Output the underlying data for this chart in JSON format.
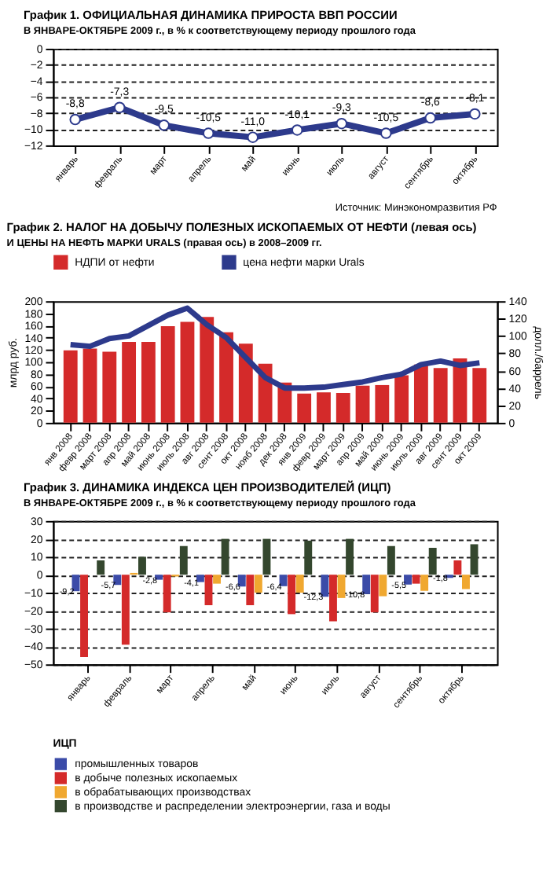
{
  "chart_data": [
    {
      "type": "line",
      "title": "График 1. ОФИЦИАЛЬНАЯ ДИНАМИКА ПРИРОСТА ВВП РОССИИ",
      "subtitle": "В ЯНВАРЕ-ОКТЯБРЕ 2009 г., в % к соответствующему периоду прошлого года",
      "categories": [
        "январь",
        "февраль",
        "март",
        "апрель",
        "май",
        "июнь",
        "июль",
        "август",
        "сентябрь",
        "октябрь"
      ],
      "series": [
        {
          "color": "#2d3a8c",
          "values": [
            -8.8,
            -7.3,
            -9.5,
            -10.5,
            -11.0,
            -10.1,
            -9.3,
            -10.5,
            -8.6,
            -8.1
          ],
          "value_labels": [
            "-8,8",
            "-7,3",
            "-9,5",
            "-10,5",
            "-11,0",
            "-10,1",
            "-9,3",
            "-10,5",
            "-8,6",
            "-8,1"
          ]
        }
      ],
      "ylim": [
        -12,
        0
      ],
      "yticks": [
        0,
        -2,
        -4,
        -6,
        -8,
        -10,
        -12
      ],
      "grid": "y",
      "marker": "circle",
      "legend": false,
      "annotations": [
        "Источник: Минэкономразвития РФ"
      ]
    },
    {
      "type": "bar",
      "title": "График 2. НАЛОГ НА ДОБЫЧУ ПОЛЕЗНЫХ ИСКОПАЕМЫХ ОТ НЕФТИ (левая ось)",
      "subtitle": "И ЦЕНЫ НА НЕФТЬ МАРКИ URALS (правая ось) в 2008–2009 гг.",
      "categories": [
        "янв 2008",
        "февр 2008",
        "март 2008",
        "апр 2008",
        "май 2008",
        "июнь 2008",
        "июль 2008",
        "авг 2008",
        "сент 2008",
        "окт 2008",
        "нояб 2008",
        "дек 2008",
        "янв 2009",
        "февр 2009",
        "март 2009",
        "апр 2009",
        "май 2009",
        "июнь 2009",
        "июль 2009",
        "авг 2009",
        "сент 2009",
        "окт 2009"
      ],
      "series": [
        {
          "name": "НДПИ от нефти",
          "type": "bar",
          "color": "#d42a2a",
          "values": [
            119,
            122,
            117,
            133,
            133,
            159,
            166,
            174,
            149,
            130,
            97,
            66,
            48,
            50,
            49,
            61,
            62,
            78,
            96,
            90,
            106,
            90
          ]
        },
        {
          "name": "цена нефти марки Urals",
          "type": "line",
          "axis": "y2",
          "color": "#2d3a8c",
          "values": [
            90,
            88,
            97,
            100,
            112,
            124,
            132,
            113,
            98,
            75,
            52,
            40,
            40,
            41,
            44,
            47,
            52,
            56,
            67,
            71,
            66,
            69
          ]
        }
      ],
      "ylabel": "млрд руб.",
      "y2label": "долл./баррель",
      "ylim": [
        0,
        200
      ],
      "yticks": [
        0,
        20,
        40,
        60,
        80,
        100,
        120,
        140,
        160,
        180,
        200
      ],
      "y2lim": [
        0,
        140
      ],
      "y2ticks": [
        0,
        20,
        40,
        60,
        80,
        100,
        120,
        140
      ],
      "grid": false,
      "legend": "top"
    },
    {
      "type": "bar",
      "title": "График 3. ДИНАМИКА ИНДЕКСА ЦЕН ПРОИЗВОДИТЕЛЕЙ (ИЦП)",
      "subtitle": "В ЯНВАРЕ-ОКТЯБРЕ 2009 г., в % к соответствующему периоду прошлого года",
      "categories": [
        "январь",
        "февраль",
        "март",
        "апрель",
        "май",
        "июнь",
        "июль",
        "август",
        "сентябрь",
        "октябрь"
      ],
      "legend_title": "ИЦП",
      "series": [
        {
          "name": "промышленных товаров",
          "color": "#3b4ba8",
          "values": [
            -9.2,
            -5.7,
            -2.8,
            -4.1,
            -6.6,
            -6.4,
            -12.3,
            -10.8,
            -5.5,
            -1.8
          ],
          "value_labels": [
            "-9,2",
            "-5,7",
            "-2,8",
            "-4,1",
            "-6,6",
            "-6,4",
            "-12,3",
            "-10,8",
            "-5,5",
            "-1,8"
          ]
        },
        {
          "name": "в добыче полезных ископаемых",
          "color": "#d42a2a",
          "values": [
            -46,
            -39,
            -21,
            -17,
            -17,
            -22,
            -26,
            -21,
            -5,
            8
          ]
        },
        {
          "name": "в обрабатывающих производствах",
          "color": "#f0a830",
          "values": [
            0,
            1,
            -1,
            -5,
            -10,
            -10,
            -13,
            -12,
            -9,
            -8
          ]
        },
        {
          "name": "в производстве и распределении электроэнергии, газа и воды",
          "color": "#34472e",
          "values": [
            8,
            10,
            16,
            20,
            20,
            19,
            20,
            16,
            15,
            17
          ]
        }
      ],
      "ylim": [
        -50,
        30
      ],
      "yticks": [
        30,
        20,
        10,
        0,
        -10,
        -20,
        -30,
        -40,
        -50
      ],
      "grid": "y",
      "legend": "bottom"
    }
  ]
}
